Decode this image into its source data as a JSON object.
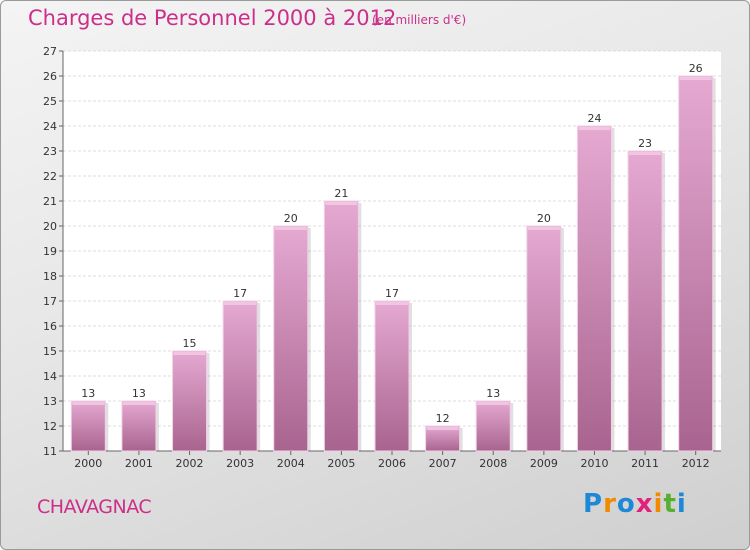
{
  "header": {
    "title": "Charges de Personnel 2000 à 2012",
    "subtitle": "(en milliers d'€)"
  },
  "footer": {
    "city": "CHAVAGNAC",
    "brand": "Proxiti",
    "brand_letters": [
      {
        "ch": "P",
        "color": "#1e88d8"
      },
      {
        "ch": "r",
        "color": "#f28a00"
      },
      {
        "ch": "o",
        "color": "#1e88d8"
      },
      {
        "ch": "x",
        "color": "#e2217d"
      },
      {
        "ch": "i",
        "color": "#f28a00"
      },
      {
        "ch": "t",
        "color": "#55b030"
      },
      {
        "ch": "i",
        "color": "#1e88d8"
      }
    ]
  },
  "chart_data": {
    "type": "bar",
    "categories": [
      "2000",
      "2001",
      "2002",
      "2003",
      "2004",
      "2005",
      "2006",
      "2007",
      "2008",
      "2009",
      "2010",
      "2011",
      "2012"
    ],
    "values": [
      13,
      13,
      15,
      17,
      20,
      21,
      17,
      12,
      13,
      20,
      24,
      23,
      26
    ],
    "ylim": [
      11,
      27
    ],
    "yticks": [
      11,
      12,
      13,
      14,
      15,
      16,
      17,
      18,
      19,
      20,
      21,
      22,
      23,
      24,
      25,
      26,
      27
    ],
    "grid": true,
    "bar_color": "#d98fc0",
    "title": "Charges de Personnel 2000 à 2012",
    "xlabel": "",
    "ylabel": ""
  }
}
